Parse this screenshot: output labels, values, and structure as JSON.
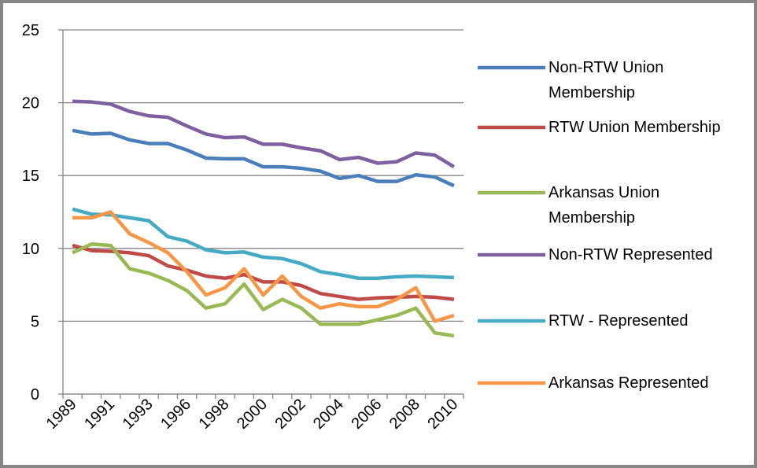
{
  "chart_data": {
    "type": "line",
    "categories": [
      "1989",
      null,
      "1991",
      null,
      "1993",
      null,
      "1996",
      null,
      "1998",
      null,
      "2000",
      null,
      "2002",
      null,
      "2004",
      null,
      "2006",
      null,
      "2008",
      null,
      "2010"
    ],
    "series": [
      {
        "name": "Non-RTW Union Membership",
        "color": "#4a7ebb",
        "values": [
          18.1,
          17.85,
          17.9,
          17.45,
          17.2,
          17.2,
          16.75,
          16.2,
          16.15,
          16.15,
          15.6,
          15.6,
          15.5,
          15.3,
          14.8,
          15.0,
          14.6,
          14.6,
          15.05,
          14.9,
          14.3
        ]
      },
      {
        "name": "RTW Union Membership",
        "color": "#be4b48",
        "values": [
          10.2,
          9.85,
          9.8,
          9.7,
          9.5,
          8.8,
          8.5,
          8.1,
          7.95,
          8.2,
          7.7,
          7.7,
          7.45,
          6.9,
          6.7,
          6.5,
          6.6,
          6.65,
          6.7,
          6.65,
          6.5
        ]
      },
      {
        "name": "Arkansas Union Membership",
        "color": "#98b954",
        "values": [
          9.7,
          10.3,
          10.2,
          8.6,
          8.3,
          7.8,
          7.1,
          5.9,
          6.2,
          7.55,
          5.8,
          6.5,
          5.9,
          4.8,
          4.8,
          4.8,
          5.1,
          5.4,
          5.9,
          4.2,
          4.0
        ]
      },
      {
        "name": "Non-RTW Represented",
        "color": "#7d60a0",
        "values": [
          20.1,
          20.05,
          19.9,
          19.4,
          19.1,
          19.0,
          18.4,
          17.85,
          17.6,
          17.65,
          17.15,
          17.15,
          16.9,
          16.7,
          16.1,
          16.25,
          15.85,
          15.95,
          16.55,
          16.4,
          15.6
        ]
      },
      {
        "name": "RTW - Represented",
        "color": "#46aac5",
        "values": [
          12.7,
          12.35,
          12.3,
          12.1,
          11.9,
          10.8,
          10.5,
          9.9,
          9.7,
          9.75,
          9.4,
          9.3,
          8.95,
          8.4,
          8.2,
          7.95,
          7.95,
          8.05,
          8.1,
          8.05,
          8.0
        ]
      },
      {
        "name": "Arkansas Represented",
        "color": "#f79646",
        "values": [
          12.1,
          12.1,
          12.5,
          11.0,
          10.4,
          9.7,
          8.4,
          6.8,
          7.3,
          8.6,
          6.8,
          8.1,
          6.7,
          5.9,
          6.2,
          6.0,
          6.0,
          6.5,
          7.3,
          5.0,
          5.4
        ]
      }
    ],
    "ylim": [
      0,
      25
    ],
    "yticks": [
      0,
      5,
      10,
      15,
      20,
      25
    ],
    "grid": true,
    "legend": "right"
  }
}
